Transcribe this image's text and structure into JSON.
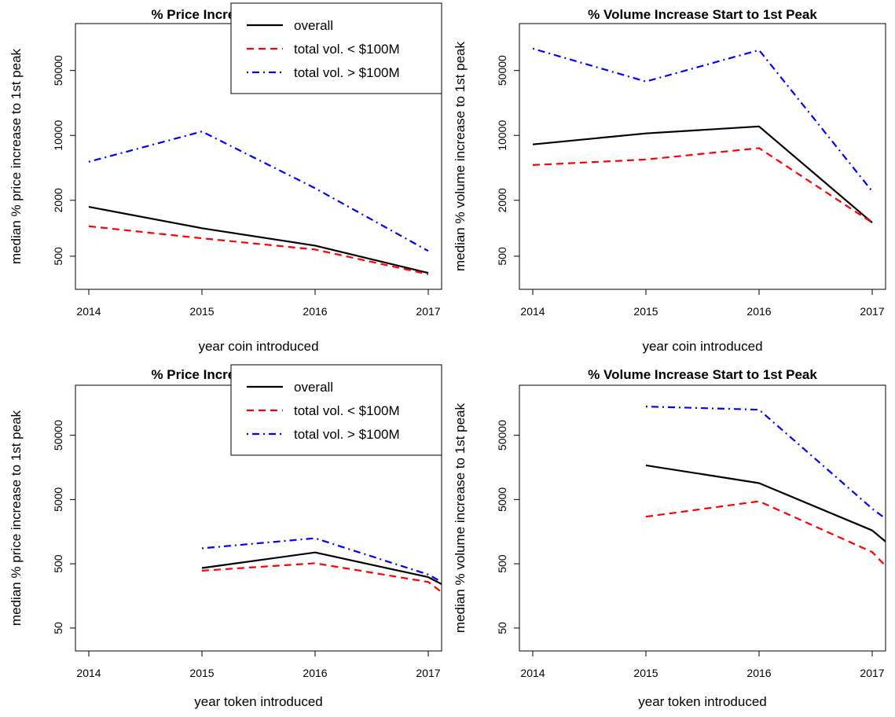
{
  "chart_data": [
    {
      "type": "line",
      "title": "% Price Increase Start to 1st Peak",
      "xlabel": "year coin introduced",
      "ylabel": "median % price increase to 1st peak",
      "log_y": true,
      "xlim": [
        2014,
        2017
      ],
      "ylim": [
        220,
        160000
      ],
      "x_ticks": [
        "2014",
        "2015",
        "2016",
        "2017"
      ],
      "y_ticks": [
        "500",
        "2000",
        "10000",
        "50000"
      ],
      "legend": {
        "position": "top-right"
      },
      "series": [
        {
          "name": "overall",
          "color": "#000000",
          "style": "solid",
          "x": [
            2014,
            2015,
            2016,
            2017
          ],
          "y": [
            1700,
            1000,
            650,
            330
          ]
        },
        {
          "name": "total vol. < $100M",
          "color": "#ff0000",
          "style": "dashed",
          "x": [
            2014,
            2015,
            2016,
            2017
          ],
          "y": [
            1050,
            780,
            590,
            320
          ]
        },
        {
          "name": "total vol. > $100M",
          "color": "#0000ff",
          "style": "dotdash",
          "x": [
            2014,
            2015,
            2016,
            2017
          ],
          "y": [
            5200,
            11000,
            2700,
            570
          ]
        }
      ]
    },
    {
      "type": "line",
      "title": "% Volume Increase Start to 1st Peak",
      "xlabel": "year coin introduced",
      "ylabel": "median % volume increase to 1st peak",
      "log_y": true,
      "xlim": [
        2014,
        2017
      ],
      "ylim": [
        220,
        160000
      ],
      "x_ticks": [
        "2014",
        "2015",
        "2016",
        "2017"
      ],
      "y_ticks": [
        "500",
        "2000",
        "10000",
        "50000"
      ],
      "legend": null,
      "series": [
        {
          "name": "overall",
          "color": "#000000",
          "style": "solid",
          "x": [
            2014,
            2015,
            2016,
            2017
          ],
          "y": [
            8000,
            10500,
            12500,
            1150
          ]
        },
        {
          "name": "total vol. < $100M",
          "color": "#ff0000",
          "style": "dashed",
          "x": [
            2014,
            2015,
            2016,
            2017
          ],
          "y": [
            4800,
            5500,
            7300,
            1150
          ]
        },
        {
          "name": "total vol. > $100M",
          "color": "#0000ff",
          "style": "dotdash",
          "x": [
            2014,
            2015,
            2016,
            2017
          ],
          "y": [
            86000,
            38000,
            83000,
            2500
          ]
        }
      ]
    },
    {
      "type": "line",
      "title": "% Price Increase Start to 1st Peak",
      "xlabel": "year token introduced",
      "ylabel": "median % price increase to 1st peak",
      "log_y": true,
      "xlim": [
        2014,
        2017
      ],
      "ylim": [
        22,
        300000
      ],
      "x_ticks": [
        "2014",
        "2015",
        "2016",
        "2017"
      ],
      "y_ticks": [
        "50",
        "500",
        "5000",
        "50000"
      ],
      "legend": {
        "position": "top-right"
      },
      "series": [
        {
          "name": "overall",
          "color": "#000000",
          "style": "solid",
          "x": [
            2015,
            2016,
            2017,
            2017.12
          ],
          "y": [
            430,
            750,
            310,
            240
          ]
        },
        {
          "name": "total vol. < $100M",
          "color": "#ff0000",
          "style": "dashed",
          "x": [
            2015,
            2016,
            2017,
            2017.12
          ],
          "y": [
            390,
            510,
            260,
            180
          ]
        },
        {
          "name": "total vol. > $100M",
          "color": "#0000ff",
          "style": "dotdash",
          "x": [
            2015,
            2016,
            2017,
            2017.12
          ],
          "y": [
            870,
            1250,
            340,
            260
          ]
        }
      ]
    },
    {
      "type": "line",
      "title": "% Volume Increase Start to 1st Peak",
      "xlabel": "year token introduced",
      "ylabel": "median % volume increase to 1st peak",
      "log_y": true,
      "xlim": [
        2014,
        2017
      ],
      "ylim": [
        22,
        300000
      ],
      "x_ticks": [
        "2014",
        "2015",
        "2016",
        "2017"
      ],
      "y_ticks": [
        "50",
        "500",
        "5000",
        "50000"
      ],
      "legend": null,
      "series": [
        {
          "name": "overall",
          "color": "#000000",
          "style": "solid",
          "x": [
            2015,
            2016,
            2017,
            2017.12
          ],
          "y": [
            17000,
            9000,
            1650,
            1100
          ]
        },
        {
          "name": "total vol. < $100M",
          "color": "#ff0000",
          "style": "dashed",
          "x": [
            2015,
            2016,
            2017,
            2017.12
          ],
          "y": [
            2700,
            4700,
            760,
            460
          ]
        },
        {
          "name": "total vol. > $100M",
          "color": "#0000ff",
          "style": "dotdash",
          "x": [
            2015,
            2016,
            2017,
            2017.12
          ],
          "y": [
            140000,
            125000,
            3600,
            2500
          ]
        }
      ]
    }
  ]
}
